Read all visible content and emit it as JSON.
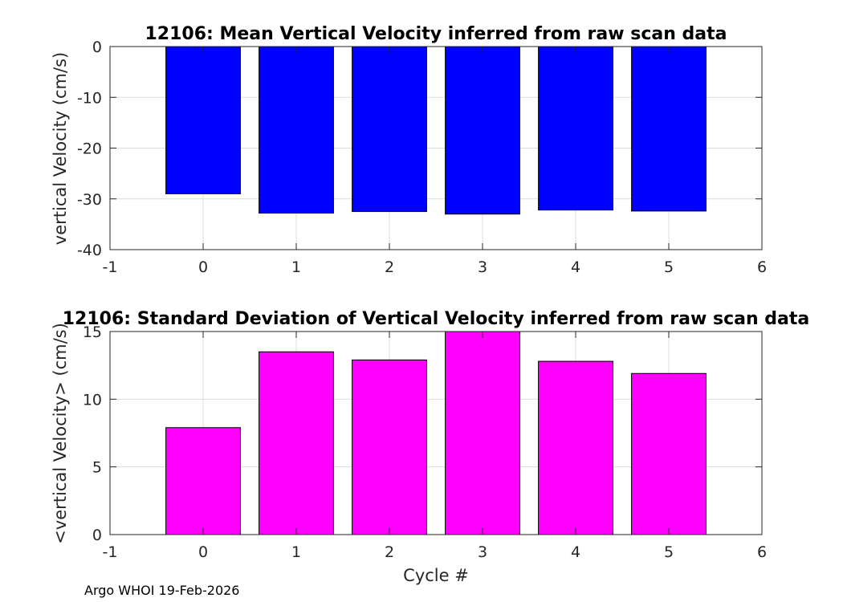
{
  "chart_data": [
    {
      "type": "bar",
      "title": "12106: Mean Vertical Velocity inferred from raw scan data",
      "xlabel": "",
      "ylabel": "vertical Velocity (cm/s)",
      "x": [
        0,
        1,
        2,
        3,
        4,
        5
      ],
      "values": [
        -29,
        -32.8,
        -32.5,
        -33,
        -32.2,
        -32.4
      ],
      "xlim": [
        -1,
        6
      ],
      "ylim": [
        -40,
        0
      ],
      "xticks": [
        -1,
        0,
        1,
        2,
        3,
        4,
        5,
        6
      ],
      "yticks": [
        -40,
        -30,
        -20,
        -10,
        0
      ],
      "bar_color": "#0000ff",
      "grid": true
    },
    {
      "type": "bar",
      "title": "12106: Standard Deviation of Vertical Velocity inferred from raw scan data",
      "xlabel": "Cycle #",
      "ylabel": "<vertical Velocity> (cm/s)",
      "x": [
        0,
        1,
        2,
        3,
        4,
        5
      ],
      "values": [
        7.9,
        13.5,
        12.9,
        15,
        12.8,
        11.9
      ],
      "xlim": [
        -1,
        6
      ],
      "ylim": [
        0,
        15
      ],
      "xticks": [
        -1,
        0,
        1,
        2,
        3,
        4,
        5,
        6
      ],
      "yticks": [
        0,
        5,
        10,
        15
      ],
      "bar_color": "#ff00ff",
      "grid": true
    }
  ],
  "footer": "Argo WHOI 19-Feb-2026"
}
